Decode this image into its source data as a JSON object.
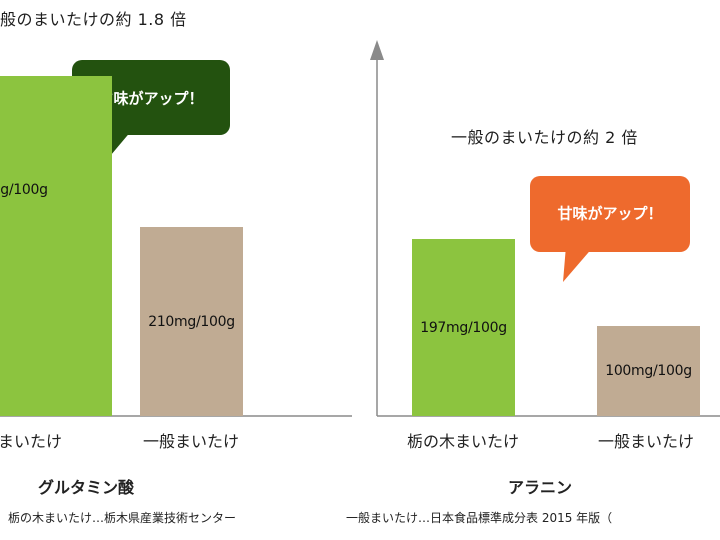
{
  "colors": {
    "tochigi_bar": "#8cc43f",
    "general_bar": "#c0ab93",
    "bubble_umami": "#23520f",
    "bubble_sweet": "#ee6a2d",
    "axis": "#8a8a8a"
  },
  "chart_data": [
    {
      "type": "bar",
      "title": "般のまいたけの約 1.8 倍",
      "xlabel": "グルタミン酸",
      "categories": [
        "まいたけ",
        "一般まいたけ"
      ],
      "values": [
        378,
        210
      ],
      "units": "mg/100g",
      "value_labels": [
        "g/100g",
        "210mg/100g"
      ],
      "callout": "旨味がアップ！",
      "ylim": [
        0,
        440
      ]
    },
    {
      "type": "bar",
      "title": "一般のまいたけの約 2 倍",
      "xlabel": "アラニン",
      "categories": [
        "栃の木まいたけ",
        "一般まいたけ"
      ],
      "values": [
        197,
        100
      ],
      "units": "mg/100g",
      "value_labels": [
        "197mg/100g",
        "100mg/100g"
      ],
      "callout": "甘味がアップ！",
      "ylim": [
        0,
        440
      ]
    }
  ],
  "footer": {
    "source_left": "栃の木まいたけ…栃木県産業技術センター",
    "source_right": "一般まいたけ…日本食品標準成分表 2015 年版（"
  }
}
